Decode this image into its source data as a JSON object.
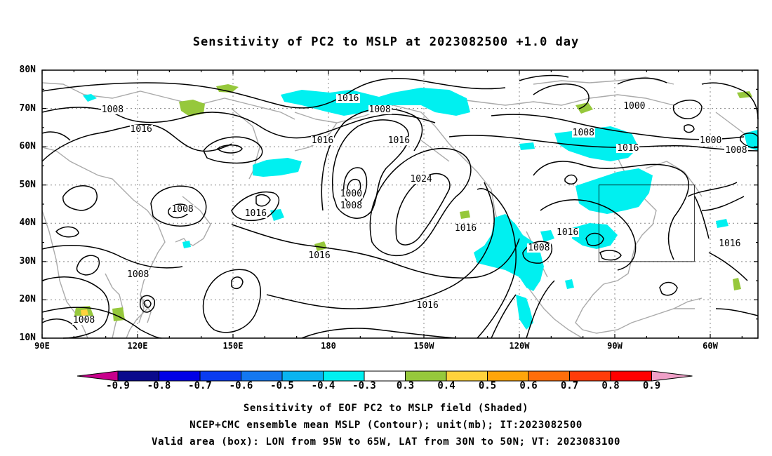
{
  "title": "Sensitivity of PC2 to MSLP at 2023082500 +1.0 day",
  "lat_labels": [
    "80N",
    "70N",
    "60N",
    "50N",
    "40N",
    "30N",
    "20N",
    "10N"
  ],
  "lon_labels": [
    "90E",
    "120E",
    "150E",
    "180",
    "150W",
    "120W",
    "90W",
    "60W"
  ],
  "colorbar": {
    "labels": [
      "-0.9",
      "-0.8",
      "-0.7",
      "-0.6",
      "-0.5",
      "-0.4",
      "-0.3",
      "0.3",
      "0.4",
      "0.5",
      "0.6",
      "0.7",
      "0.8",
      "0.9"
    ],
    "colors": [
      "#0a0a8c",
      "#0000e6",
      "#0a3cf0",
      "#1478f0",
      "#0ab4f0",
      "#00f0f0",
      "#ffffff",
      "#96c83c",
      "#ffd23c",
      "#ffa50a",
      "#ff6e0a",
      "#ff3c0a",
      "#ff0000"
    ],
    "low_color": "#c8008c",
    "high_color": "#f0a0c8"
  },
  "contour_labels": [
    {
      "text": "1016",
      "lon": 186,
      "lat": 72.5
    },
    {
      "text": "1008",
      "lon": 112,
      "lat": 69.5
    },
    {
      "text": "1016",
      "lon": 121,
      "lat": 64.5
    },
    {
      "text": "1008",
      "lon": 196,
      "lat": 69.5
    },
    {
      "text": "1016",
      "lon": 178,
      "lat": 61.5
    },
    {
      "text": "1016",
      "lon": 202,
      "lat": 61.5
    },
    {
      "text": "1000",
      "lon": 187,
      "lat": 47.5
    },
    {
      "text": "1008",
      "lon": 187,
      "lat": 44.5
    },
    {
      "text": "1024",
      "lon": 209,
      "lat": 51.5
    },
    {
      "text": "1016",
      "lon": 157,
      "lat": 42.5
    },
    {
      "text": "1008",
      "lon": 134,
      "lat": 43.5
    },
    {
      "text": "1016",
      "lon": 177,
      "lat": 31.5
    },
    {
      "text": "1008",
      "lon": 120,
      "lat": 26.5
    },
    {
      "text": "1008",
      "lon": 103,
      "lat": 14.5
    },
    {
      "text": "1016",
      "lon": 223,
      "lat": 38.5
    },
    {
      "text": "1008",
      "lon": 246,
      "lat": 33.5
    },
    {
      "text": "1016",
      "lon": 255,
      "lat": 37.5
    },
    {
      "text": "1016",
      "lon": 211,
      "lat": 18.5
    },
    {
      "text": "1008",
      "lon": 260,
      "lat": 63.5
    },
    {
      "text": "1016",
      "lon": 274,
      "lat": 59.5
    },
    {
      "text": "1000",
      "lon": 276,
      "lat": 70.5
    },
    {
      "text": "1000",
      "lon": 300,
      "lat": 61.5
    },
    {
      "text": "1008",
      "lon": 308,
      "lat": 59.0
    },
    {
      "text": "1016",
      "lon": 306,
      "lat": 34.5
    }
  ],
  "valid_box": {
    "lon_min": 265,
    "lon_max": 295,
    "lat_min": 30,
    "lat_max": 50
  },
  "captions": [
    "Sensitivity of EOF PC2 to MSLP field (Shaded)",
    "NCEP+CMC ensemble mean MSLP (Contour); unit(mb); IT:2023082500",
    "Valid area (box): LON from 95W to 65W, LAT from 30N to 50N; VT: 2023083100"
  ]
}
